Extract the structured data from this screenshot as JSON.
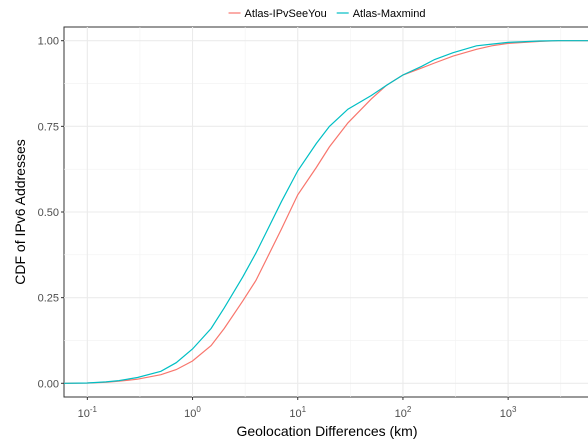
{
  "chart_data": {
    "type": "line",
    "title": "",
    "xlabel": "Geolocation Differences (km)",
    "ylabel": "CDF of IPv6 Addresses",
    "x_scale": "log10",
    "xlim": [
      0.06,
      6000
    ],
    "ylim": [
      -0.04,
      1.04
    ],
    "grid": true,
    "legend_position": "top",
    "x_ticks": [
      {
        "value": 0.1,
        "base": "10",
        "exp": "-1"
      },
      {
        "value": 1,
        "base": "10",
        "exp": "0"
      },
      {
        "value": 10,
        "base": "10",
        "exp": "1"
      },
      {
        "value": 100,
        "base": "10",
        "exp": "2"
      },
      {
        "value": 1000,
        "base": "10",
        "exp": "3"
      }
    ],
    "y_ticks": [
      {
        "value": 0,
        "label": "0.00"
      },
      {
        "value": 0.25,
        "label": "0.25"
      },
      {
        "value": 0.5,
        "label": "0.50"
      },
      {
        "value": 0.75,
        "label": "0.75"
      },
      {
        "value": 1,
        "label": "1.00"
      }
    ],
    "series": [
      {
        "name": "Atlas-IPvSeeYou",
        "color": "#F8766D",
        "points": [
          [
            0.06,
            0
          ],
          [
            0.1,
            0.001
          ],
          [
            0.15,
            0.003
          ],
          [
            0.2,
            0.006
          ],
          [
            0.3,
            0.012
          ],
          [
            0.5,
            0.025
          ],
          [
            0.7,
            0.04
          ],
          [
            1,
            0.065
          ],
          [
            1.5,
            0.11
          ],
          [
            2,
            0.16
          ],
          [
            3,
            0.24
          ],
          [
            4,
            0.3
          ],
          [
            5,
            0.36
          ],
          [
            7,
            0.45
          ],
          [
            10,
            0.55
          ],
          [
            15,
            0.63
          ],
          [
            20,
            0.69
          ],
          [
            30,
            0.76
          ],
          [
            50,
            0.83
          ],
          [
            70,
            0.87
          ],
          [
            100,
            0.9
          ],
          [
            150,
            0.92
          ],
          [
            200,
            0.935
          ],
          [
            300,
            0.955
          ],
          [
            500,
            0.975
          ],
          [
            700,
            0.985
          ],
          [
            1000,
            0.992
          ],
          [
            2000,
            0.998
          ],
          [
            3000,
            1.0
          ],
          [
            6000,
            1.0
          ]
        ]
      },
      {
        "name": "Atlas-Maxmind",
        "color": "#00BFC4",
        "points": [
          [
            0.06,
            0
          ],
          [
            0.1,
            0.001
          ],
          [
            0.15,
            0.004
          ],
          [
            0.2,
            0.008
          ],
          [
            0.3,
            0.017
          ],
          [
            0.5,
            0.035
          ],
          [
            0.7,
            0.06
          ],
          [
            1,
            0.1
          ],
          [
            1.5,
            0.16
          ],
          [
            2,
            0.22
          ],
          [
            3,
            0.31
          ],
          [
            4,
            0.38
          ],
          [
            5,
            0.44
          ],
          [
            7,
            0.53
          ],
          [
            10,
            0.62
          ],
          [
            15,
            0.7
          ],
          [
            20,
            0.75
          ],
          [
            30,
            0.8
          ],
          [
            50,
            0.84
          ],
          [
            70,
            0.87
          ],
          [
            100,
            0.9
          ],
          [
            150,
            0.925
          ],
          [
            200,
            0.945
          ],
          [
            300,
            0.965
          ],
          [
            500,
            0.985
          ],
          [
            700,
            0.99
          ],
          [
            1000,
            0.995
          ],
          [
            2000,
            0.999
          ],
          [
            3000,
            1.0
          ],
          [
            6000,
            1.0
          ]
        ]
      }
    ]
  }
}
